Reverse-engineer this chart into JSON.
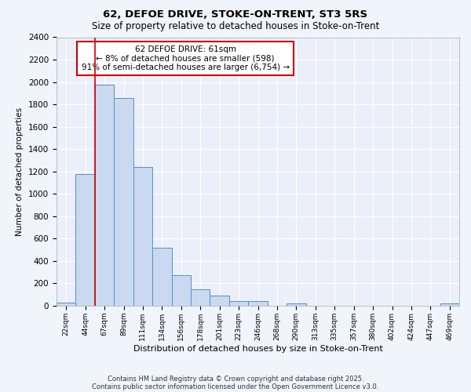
{
  "title1": "62, DEFOE DRIVE, STOKE-ON-TRENT, ST3 5RS",
  "title2": "Size of property relative to detached houses in Stoke-on-Trent",
  "xlabel": "Distribution of detached houses by size in Stoke-on-Trent",
  "ylabel": "Number of detached properties",
  "categories": [
    "22sqm",
    "44sqm",
    "67sqm",
    "89sqm",
    "111sqm",
    "134sqm",
    "156sqm",
    "178sqm",
    "201sqm",
    "223sqm",
    "246sqm",
    "268sqm",
    "290sqm",
    "313sqm",
    "335sqm",
    "357sqm",
    "380sqm",
    "402sqm",
    "424sqm",
    "447sqm",
    "469sqm"
  ],
  "values": [
    25,
    1175,
    1975,
    1860,
    1240,
    520,
    275,
    150,
    90,
    45,
    40,
    0,
    20,
    0,
    0,
    0,
    0,
    0,
    0,
    0,
    20
  ],
  "bar_color": "#c9d9f0",
  "bar_edge_color": "#5b8ec4",
  "vline_color": "#cc0000",
  "annotation_text": "62 DEFOE DRIVE: 61sqm\n← 8% of detached houses are smaller (598)\n91% of semi-detached houses are larger (6,754) →",
  "annotation_box_color": "#ffffff",
  "annotation_edge_color": "#cc0000",
  "ylim": [
    0,
    2400
  ],
  "yticks": [
    0,
    200,
    400,
    600,
    800,
    1000,
    1200,
    1400,
    1600,
    1800,
    2000,
    2200,
    2400
  ],
  "bg_color": "#eaeff9",
  "grid_color": "#ffffff",
  "fig_bg_color": "#f0f4fb",
  "footer1": "Contains HM Land Registry data © Crown copyright and database right 2025.",
  "footer2": "Contains public sector information licensed under the Open Government Licence v3.0."
}
